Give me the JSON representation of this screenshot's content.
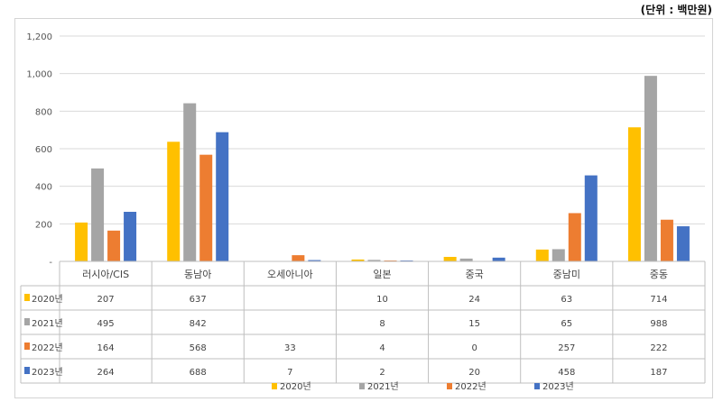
{
  "unit_note": "(단위 : 백만원)",
  "chart_data": {
    "type": "bar",
    "categories": [
      "러시아/CIS",
      "동남아",
      "오세아니아",
      "일본",
      "중국",
      "중남미",
      "중동"
    ],
    "yticks": [
      "-",
      "200",
      "400",
      "600",
      "800",
      "1,000",
      "1,200"
    ],
    "ylim": [
      0,
      1200
    ],
    "grid": true,
    "legend_position": "bottom",
    "series": [
      {
        "name": "2020년",
        "color": "#FFC000",
        "values": [
          207,
          637,
          null,
          10,
          24,
          63,
          714
        ],
        "labels": [
          "207",
          "637",
          "",
          "10",
          "24",
          "63",
          "714"
        ]
      },
      {
        "name": "2021년",
        "color": "#A5A5A5",
        "values": [
          495,
          842,
          null,
          8,
          15,
          65,
          988
        ],
        "labels": [
          "495",
          "842",
          "",
          "8",
          "15",
          "65",
          "988"
        ]
      },
      {
        "name": "2022년",
        "color": "#ED7D31",
        "values": [
          164,
          568,
          33,
          4,
          0,
          257,
          222
        ],
        "labels": [
          "164",
          "568",
          "33",
          "4",
          "0",
          "257",
          "222"
        ]
      },
      {
        "name": "2023년",
        "color": "#4472C4",
        "values": [
          264,
          688,
          7,
          2,
          20,
          458,
          187
        ],
        "labels": [
          "264",
          "688",
          "7",
          "2",
          "20",
          "458",
          "187"
        ]
      }
    ]
  }
}
